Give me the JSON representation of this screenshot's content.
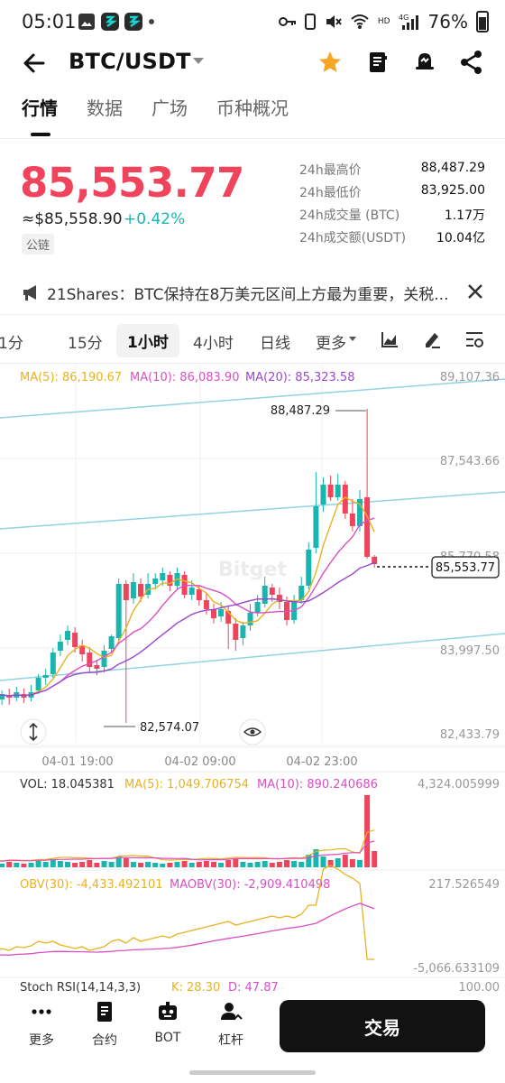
{
  "status": {
    "time": "05:01",
    "battery": "76%",
    "network": "4G",
    "hd": "HD"
  },
  "header": {
    "pair": "BTC/USDT"
  },
  "tabs": [
    "行情",
    "数据",
    "广场",
    "币种概况"
  ],
  "ticker": {
    "last_price": "85,553.77",
    "approx": "≈$85,558.90",
    "change": "+0.42%",
    "tag": "公链",
    "stats": [
      {
        "k": "24h最高价",
        "v": "88,487.29"
      },
      {
        "k": "24h最低价",
        "v": "83,925.00"
      },
      {
        "k": "24h成交量 (BTC)",
        "v": "1.17万"
      },
      {
        "k": "24h成交额(USDT)",
        "v": "10.04亿"
      }
    ]
  },
  "news": {
    "text": "21Shares：BTC保持在8万美元区间上方最为重要，关税..."
  },
  "intervals": [
    "1分",
    "15分",
    "1小时",
    "4小时",
    "日线",
    "更多"
  ],
  "chart": {
    "ma5": "MA(5): 86,190.67",
    "ma10": "MA(10): 86,083.90",
    "ma20": "MA(20): 85,323.58",
    "price_ticks": [
      "89,107.36",
      "87,543.66",
      "85,770.58",
      "83,997.50",
      "82,433.79"
    ],
    "high_label": "88,487.29",
    "low_label": "82,574.07",
    "last_label": "85,553.77",
    "time_ticks": [
      "04-01 19:00",
      "04-02 09:00",
      "04-02 23:00"
    ],
    "watermark": "Bitget",
    "vol": "VOL: 18.045381",
    "vol_ma5": "MA(5): 1,049.706754",
    "vol_ma10": "MA(10): 890.240686",
    "vol_max": "4,324.005999",
    "obv": "OBV(30): -4,433.492101",
    "maobv": "MAOBV(30): -2,909.410498",
    "obv_max": "217.526549",
    "obv_min": "-5,066.633109",
    "stoch": "Stoch RSI(14,14,3,3)",
    "stoch_k": "K: 28.30",
    "stoch_d": "D: 47.87",
    "stoch_max": "100.00"
  },
  "colors": {
    "up": "#19b6b0",
    "down": "#f0445c",
    "ma5": "#e8b21f",
    "ma10": "#d94fc4",
    "ma20": "#9a47d0"
  },
  "bottom_nav": [
    {
      "label": "更多",
      "icon": "more-icon"
    },
    {
      "label": "合约",
      "icon": "contract-icon"
    },
    {
      "label": "BOT",
      "icon": "bot-icon"
    },
    {
      "label": "杠杆",
      "icon": "leverage-icon"
    }
  ],
  "trade_button": "交易"
}
